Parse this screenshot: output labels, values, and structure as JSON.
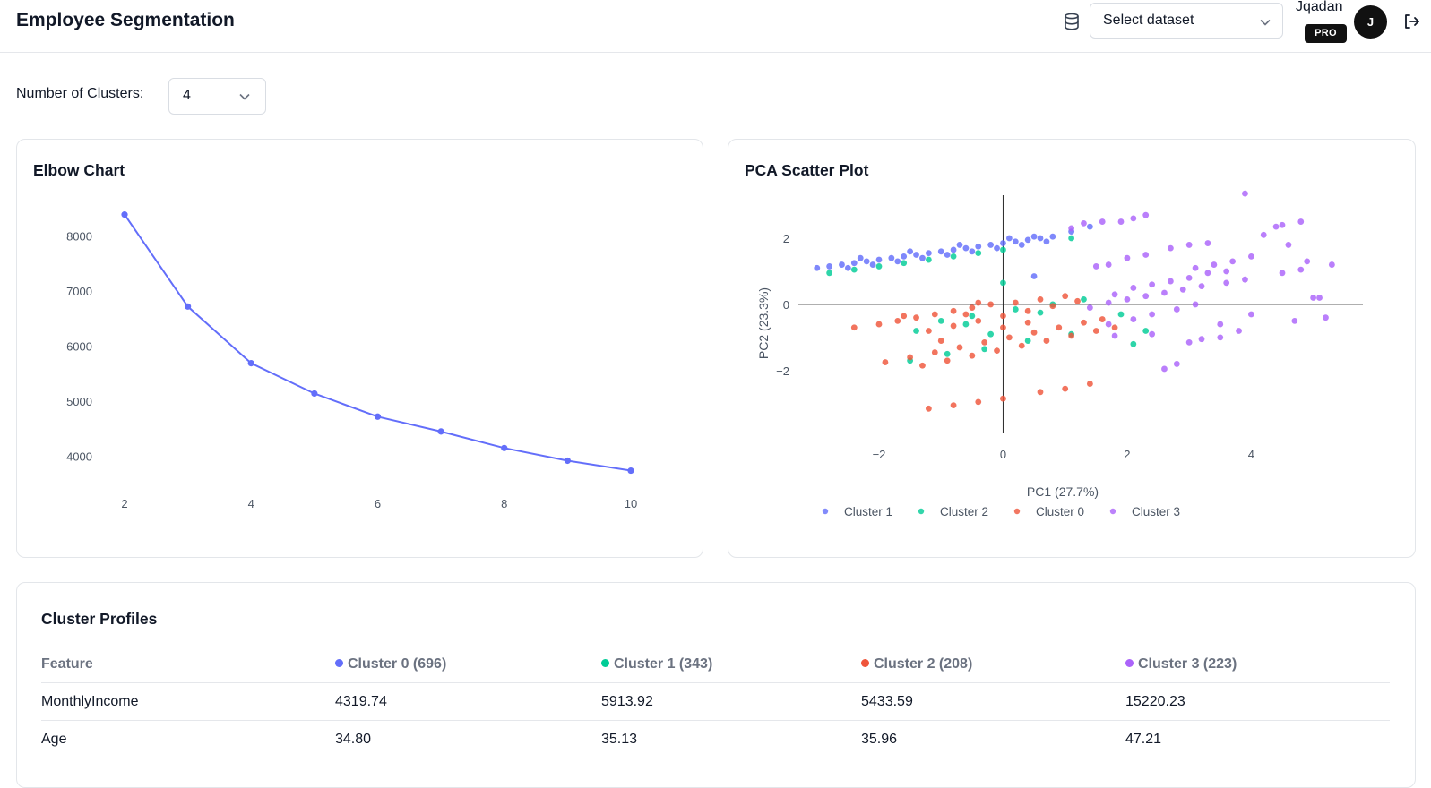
{
  "header": {
    "title": "Employee Segmentation",
    "dataset_select": {
      "placeholder": "Select dataset"
    },
    "user": {
      "name": "Jqadan",
      "badge": "PRO",
      "avatar_initial": "J"
    }
  },
  "controls": {
    "clusters_label": "Number of Clusters:",
    "clusters_value": "4"
  },
  "elbow_card": {
    "title": "Elbow Chart"
  },
  "pca_card": {
    "title": "PCA Scatter Plot"
  },
  "chart_data": [
    {
      "type": "line",
      "title": "Elbow Chart",
      "x": [
        2,
        3,
        4,
        5,
        6,
        7,
        8,
        9,
        10
      ],
      "y": [
        8390,
        6720,
        5690,
        5140,
        4720,
        4450,
        4150,
        3920,
        3740
      ],
      "xticks": [
        "2",
        "4",
        "6",
        "8",
        "10"
      ],
      "yticks": [
        "4000",
        "5000",
        "6000",
        "7000",
        "8000"
      ],
      "xlim": [
        2,
        10
      ],
      "ylim": [
        3700,
        8400
      ],
      "color": "#636efa",
      "grid": false
    },
    {
      "type": "scatter",
      "title": "PCA Scatter Plot",
      "xlabel": "PC1 (27.7%)",
      "ylabel": "PC2 (23.3%)",
      "xticks": [
        "−2",
        "0",
        "2",
        "4"
      ],
      "yticks": [
        "2",
        "0",
        "−2"
      ],
      "xlim": [
        -3.3,
        5.8
      ],
      "ylim": [
        -3.9,
        3.3
      ],
      "legend_position": "bottom",
      "series": [
        {
          "name": "Cluster 1",
          "color": "#636efa",
          "points": [
            [
              -3.0,
              1.1
            ],
            [
              -2.8,
              1.15
            ],
            [
              -2.6,
              1.2
            ],
            [
              -2.4,
              1.25
            ],
            [
              -2.2,
              1.3
            ],
            [
              -2.0,
              1.35
            ],
            [
              -1.8,
              1.4
            ],
            [
              -1.6,
              1.45
            ],
            [
              -1.4,
              1.5
            ],
            [
              -1.2,
              1.55
            ],
            [
              -1.0,
              1.6
            ],
            [
              -0.8,
              1.65
            ],
            [
              -0.6,
              1.7
            ],
            [
              -0.4,
              1.75
            ],
            [
              -0.2,
              1.8
            ],
            [
              0.0,
              1.85
            ],
            [
              0.2,
              1.9
            ],
            [
              0.4,
              1.95
            ],
            [
              0.6,
              2.0
            ],
            [
              0.8,
              2.05
            ],
            [
              1.1,
              2.2
            ],
            [
              1.4,
              2.35
            ],
            [
              -2.5,
              1.1
            ],
            [
              -2.1,
              1.2
            ],
            [
              -1.7,
              1.3
            ],
            [
              -1.3,
              1.4
            ],
            [
              -0.9,
              1.5
            ],
            [
              -0.5,
              1.6
            ],
            [
              -0.1,
              1.7
            ],
            [
              0.3,
              1.8
            ],
            [
              0.7,
              1.9
            ],
            [
              -2.3,
              1.4
            ],
            [
              -1.5,
              1.6
            ],
            [
              -0.7,
              1.8
            ],
            [
              0.1,
              2.0
            ],
            [
              0.5,
              2.05
            ],
            [
              0.5,
              0.85
            ]
          ]
        },
        {
          "name": "Cluster 2",
          "color": "#00cc96",
          "points": [
            [
              -2.8,
              0.95
            ],
            [
              -2.4,
              1.05
            ],
            [
              -2.0,
              1.15
            ],
            [
              -1.6,
              1.25
            ],
            [
              -1.2,
              1.35
            ],
            [
              -0.8,
              1.45
            ],
            [
              -0.4,
              1.55
            ],
            [
              0.0,
              1.65
            ],
            [
              -1.0,
              -0.5
            ],
            [
              -0.5,
              -0.35
            ],
            [
              0.2,
              -0.15
            ],
            [
              0.8,
              0.0
            ],
            [
              1.3,
              0.15
            ],
            [
              -1.5,
              -1.7
            ],
            [
              -0.9,
              -1.5
            ],
            [
              -0.3,
              -1.35
            ],
            [
              0.4,
              -1.1
            ],
            [
              1.1,
              -0.9
            ],
            [
              -1.4,
              -0.8
            ],
            [
              -0.6,
              -0.6
            ],
            [
              0.0,
              0.65
            ],
            [
              1.9,
              -0.3
            ],
            [
              2.3,
              -0.8
            ],
            [
              1.1,
              2.0
            ],
            [
              2.1,
              -1.2
            ],
            [
              -0.2,
              -0.9
            ],
            [
              0.6,
              -0.25
            ]
          ]
        },
        {
          "name": "Cluster 0",
          "color": "#ef553b",
          "points": [
            [
              -2.4,
              -0.7
            ],
            [
              -2.0,
              -0.6
            ],
            [
              -1.7,
              -0.5
            ],
            [
              -1.4,
              -0.4
            ],
            [
              -1.1,
              -0.3
            ],
            [
              -0.8,
              -0.2
            ],
            [
              -0.5,
              -0.1
            ],
            [
              -0.2,
              0.0
            ],
            [
              -1.2,
              -0.8
            ],
            [
              -0.8,
              -0.65
            ],
            [
              -0.4,
              -0.5
            ],
            [
              0.0,
              -0.35
            ],
            [
              0.4,
              -0.2
            ],
            [
              0.8,
              -0.05
            ],
            [
              1.2,
              0.1
            ],
            [
              -1.9,
              -1.75
            ],
            [
              -1.5,
              -1.6
            ],
            [
              -1.1,
              -1.45
            ],
            [
              -0.7,
              -1.3
            ],
            [
              -0.3,
              -1.15
            ],
            [
              0.1,
              -1.0
            ],
            [
              0.5,
              -0.85
            ],
            [
              0.9,
              -0.7
            ],
            [
              1.3,
              -0.55
            ],
            [
              1.6,
              -0.45
            ],
            [
              -1.3,
              -1.85
            ],
            [
              -0.9,
              -1.7
            ],
            [
              -0.5,
              -1.55
            ],
            [
              -0.1,
              -1.4
            ],
            [
              0.3,
              -1.25
            ],
            [
              0.7,
              -1.1
            ],
            [
              1.1,
              -0.95
            ],
            [
              1.5,
              -0.8
            ],
            [
              1.8,
              -0.7
            ],
            [
              -1.2,
              -3.15
            ],
            [
              -0.8,
              -3.05
            ],
            [
              -0.4,
              -2.95
            ],
            [
              0.0,
              -2.85
            ],
            [
              0.6,
              -2.65
            ],
            [
              1.0,
              -2.55
            ],
            [
              1.4,
              -2.4
            ],
            [
              -0.6,
              -0.3
            ],
            [
              0.2,
              0.05
            ],
            [
              0.6,
              0.15
            ],
            [
              1.0,
              0.25
            ],
            [
              -1.6,
              -0.35
            ],
            [
              -1.0,
              -1.1
            ],
            [
              0.0,
              -0.7
            ],
            [
              0.4,
              -0.55
            ],
            [
              -0.4,
              0.05
            ]
          ]
        },
        {
          "name": "Cluster 3",
          "color": "#ab63fa",
          "points": [
            [
              1.1,
              2.3
            ],
            [
              1.3,
              2.45
            ],
            [
              1.6,
              2.5
            ],
            [
              1.9,
              2.5
            ],
            [
              2.1,
              2.6
            ],
            [
              2.3,
              2.7
            ],
            [
              3.9,
              3.35
            ],
            [
              4.4,
              2.35
            ],
            [
              4.5,
              2.4
            ],
            [
              4.2,
              2.1
            ],
            [
              4.8,
              2.5
            ],
            [
              3.3,
              1.85
            ],
            [
              2.7,
              1.7
            ],
            [
              3.0,
              1.8
            ],
            [
              1.5,
              1.15
            ],
            [
              1.7,
              1.2
            ],
            [
              2.0,
              1.4
            ],
            [
              2.3,
              1.5
            ],
            [
              4.6,
              1.8
            ],
            [
              4.9,
              1.3
            ],
            [
              5.3,
              1.2
            ],
            [
              3.1,
              1.1
            ],
            [
              3.4,
              1.2
            ],
            [
              3.7,
              1.3
            ],
            [
              4.0,
              1.45
            ],
            [
              1.8,
              0.3
            ],
            [
              2.1,
              0.5
            ],
            [
              2.4,
              0.6
            ],
            [
              2.7,
              0.7
            ],
            [
              3.0,
              0.8
            ],
            [
              3.3,
              0.95
            ],
            [
              3.6,
              1.0
            ],
            [
              1.4,
              -0.1
            ],
            [
              1.7,
              0.05
            ],
            [
              2.0,
              0.15
            ],
            [
              2.3,
              0.25
            ],
            [
              2.6,
              0.35
            ],
            [
              2.9,
              0.45
            ],
            [
              3.2,
              0.55
            ],
            [
              3.6,
              0.65
            ],
            [
              3.9,
              0.75
            ],
            [
              4.5,
              0.95
            ],
            [
              4.8,
              1.05
            ],
            [
              1.7,
              -0.6
            ],
            [
              2.1,
              -0.45
            ],
            [
              2.4,
              -0.3
            ],
            [
              2.8,
              -0.15
            ],
            [
              3.1,
              0.0
            ],
            [
              4.0,
              -0.3
            ],
            [
              4.7,
              -0.5
            ],
            [
              5.0,
              0.2
            ],
            [
              5.2,
              -0.4
            ],
            [
              3.0,
              -1.15
            ],
            [
              2.6,
              -1.95
            ],
            [
              2.8,
              -1.8
            ],
            [
              3.2,
              -1.05
            ],
            [
              3.5,
              -0.6
            ],
            [
              3.8,
              -0.8
            ],
            [
              2.4,
              -0.9
            ],
            [
              1.8,
              -0.95
            ],
            [
              3.5,
              -1.0
            ],
            [
              5.1,
              0.2
            ]
          ]
        }
      ]
    }
  ],
  "profiles": {
    "title": "Cluster Profiles",
    "columns": [
      {
        "label": "Feature"
      },
      {
        "label": "Cluster 0 (696)",
        "color": "#636efa"
      },
      {
        "label": "Cluster 1 (343)",
        "color": "#00cc96"
      },
      {
        "label": "Cluster 2 (208)",
        "color": "#ef553b"
      },
      {
        "label": "Cluster 3 (223)",
        "color": "#ab63fa"
      }
    ],
    "rows": [
      [
        "MonthlyIncome",
        "4319.74",
        "5913.92",
        "5433.59",
        "15220.23"
      ],
      [
        "Age",
        "34.80",
        "35.13",
        "35.96",
        "47.21"
      ]
    ]
  }
}
